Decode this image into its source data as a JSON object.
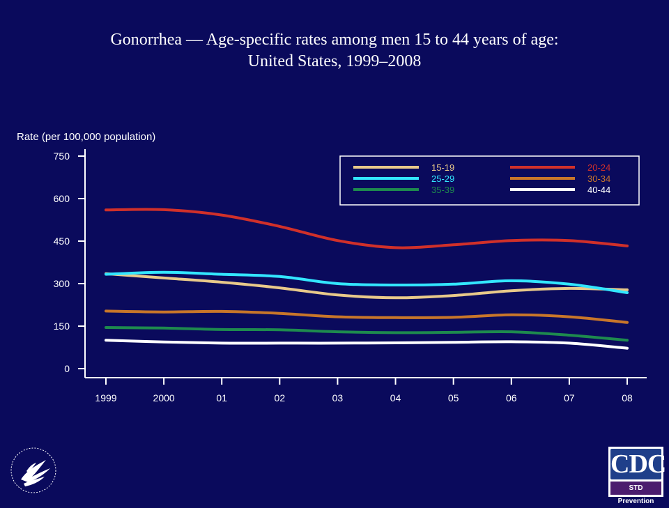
{
  "title_line1": "Gonorrhea — Age-specific rates among men 15 to 44 years of age:",
  "title_line2": "United States, 1999–2008",
  "logos": {
    "cdc_text": "CDC",
    "cdc_subtext": "STD Prevention",
    "hhs_icon": "hhs-eagle-seal-icon"
  },
  "colors": {
    "background": "#0a0a5c",
    "axis": "#ffffff"
  },
  "chart_data": {
    "type": "line",
    "ylabel": "Rate (per 100,000 population)",
    "xlabel": "",
    "ylim": [
      0,
      750
    ],
    "yticks": [
      0,
      150,
      300,
      450,
      600,
      750
    ],
    "x": [
      "1999",
      "2000",
      "01",
      "02",
      "03",
      "04",
      "05",
      "06",
      "07",
      "08"
    ],
    "legend_position": "top-right",
    "grid": false,
    "series": [
      {
        "name": "15-19",
        "color": "#e8c98a",
        "values": [
          335,
          320,
          305,
          285,
          260,
          250,
          258,
          275,
          283,
          278
        ]
      },
      {
        "name": "20-24",
        "color": "#d0302a",
        "values": [
          560,
          561,
          542,
          502,
          452,
          427,
          437,
          452,
          452,
          433
        ]
      },
      {
        "name": "25-29",
        "color": "#33e6ff",
        "values": [
          333,
          340,
          333,
          325,
          300,
          295,
          298,
          310,
          298,
          268
        ]
      },
      {
        "name": "30-34",
        "color": "#c8762a",
        "values": [
          203,
          200,
          202,
          195,
          183,
          180,
          181,
          190,
          183,
          163
        ]
      },
      {
        "name": "35-39",
        "color": "#1e8a4e",
        "values": [
          145,
          143,
          138,
          137,
          130,
          127,
          128,
          130,
          118,
          100
        ]
      },
      {
        "name": "40-44",
        "color": "#ffffff",
        "values": [
          100,
          94,
          90,
          90,
          90,
          91,
          93,
          95,
          90,
          72
        ]
      }
    ]
  }
}
